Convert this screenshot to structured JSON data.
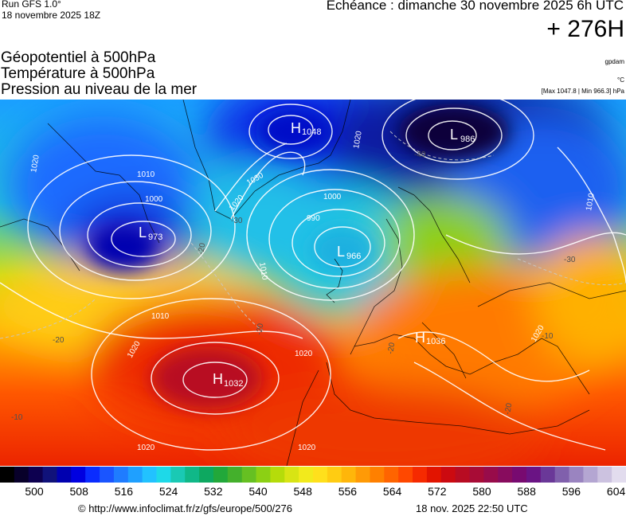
{
  "header": {
    "run": "Run GFS 1.0°",
    "run_date": "18 novembre 2025 18Z",
    "valid_time": "Echéance : dimanche 30 novembre 2025 6h UTC",
    "lead_time": "+ 276H",
    "brand": "gpdam",
    "unit": "°C",
    "minmax": "[Max 1047.8 | Min 966.3] hPa"
  },
  "parameters": [
    "Géopotentiel à 500hPa",
    "Température à 500hPa",
    "Pression au niveau de la mer"
  ],
  "pressure_centers": [
    {
      "type": "H",
      "value": "1048"
    },
    {
      "type": "L",
      "value": "986"
    },
    {
      "type": "L",
      "value": "973"
    },
    {
      "type": "L",
      "value": "966"
    },
    {
      "type": "H",
      "value": "1032"
    },
    {
      "type": "H",
      "value": "1036"
    }
  ],
  "isobar_labels": [
    "1020",
    "1010",
    "1000",
    "990",
    "1030",
    "1020",
    "1010",
    "1010",
    "1020",
    "1020",
    "1020",
    "1010",
    "1000",
    "1020",
    "1020",
    "1020"
  ],
  "temperature_labels": [
    "-40",
    "-30",
    "-20",
    "-20",
    "-20",
    "-20",
    "-10",
    "-20",
    "-10",
    "-30"
  ],
  "colorbar": {
    "ticks": [
      "500",
      "508",
      "516",
      "524",
      "532",
      "540",
      "548",
      "556",
      "564",
      "572",
      "580",
      "588",
      "596",
      "604"
    ],
    "colors": [
      "#000000",
      "#08002a",
      "#0d0050",
      "#10127a",
      "#0000b0",
      "#0000e0",
      "#0a2cff",
      "#1a55ff",
      "#1f7cff",
      "#1fa0ff",
      "#22c2ff",
      "#1ed9e8",
      "#1ac9b4",
      "#10b888",
      "#0da860",
      "#22a83a",
      "#44b02c",
      "#66c022",
      "#8cd014",
      "#b5dc0a",
      "#d8e414",
      "#f2ea1c",
      "#ffe01c",
      "#ffcc12",
      "#ffb60a",
      "#ff9a06",
      "#ff8000",
      "#ff6400",
      "#ff4800",
      "#f62a00",
      "#e21400",
      "#cc0a10",
      "#b80c22",
      "#a80c36",
      "#980c4a",
      "#880c5e",
      "#780a70",
      "#6a1484",
      "#6a3898",
      "#8060ac",
      "#9a84c0",
      "#b4a6d2",
      "#ccc2e0",
      "#e2dcee"
    ]
  },
  "footer": {
    "credit": "© http://www.infoclimat.fr/z/gfs/europe/500/276",
    "issued": "18 nov. 2025 22:50 UTC"
  }
}
